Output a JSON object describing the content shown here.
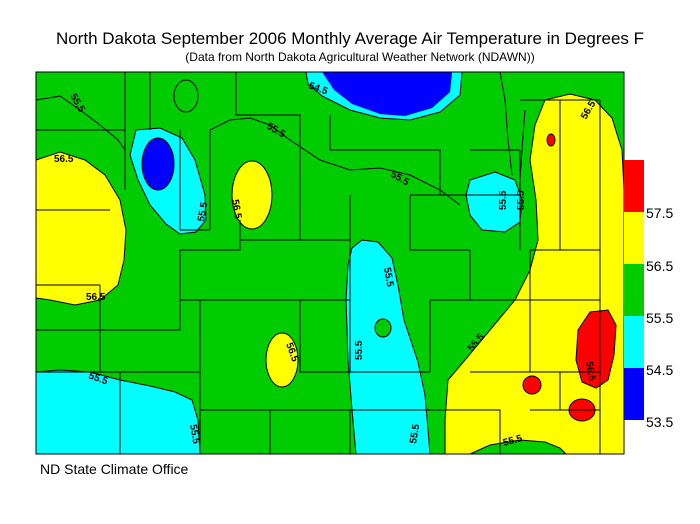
{
  "title": "North Dakota September 2006 Monthly Average Air Temperature in Degrees F",
  "subtitle": "(Data from North Dakota Agricultural Weather Network (NDAWN))",
  "credit": "ND State Climate Office",
  "legend": [
    {
      "label": "57.5",
      "color": "#ff0000"
    },
    {
      "label": "56.5",
      "color": "#ffff00"
    },
    {
      "label": "55.5",
      "color": "#00cc00"
    },
    {
      "label": "54.5",
      "color": "#00ffff"
    },
    {
      "label": "53.5",
      "color": "#0000ff"
    }
  ],
  "legend_colors": [
    "#ff0000",
    "#ffff00",
    "#00cc00",
    "#00ffff",
    "#0000ff"
  ],
  "contour_labels": [
    "55.5",
    "54.5",
    "56.5",
    "55.5",
    "55.5",
    "56.5",
    "55.5",
    "56.5",
    "56.5",
    "55.5",
    "55.5",
    "55.5",
    "55.5",
    "55.5",
    "56.5",
    "55.5",
    "55.5",
    "55.5",
    "55.5",
    "56.5",
    "57.5",
    "55.5",
    "56.5",
    "55.5"
  ]
}
